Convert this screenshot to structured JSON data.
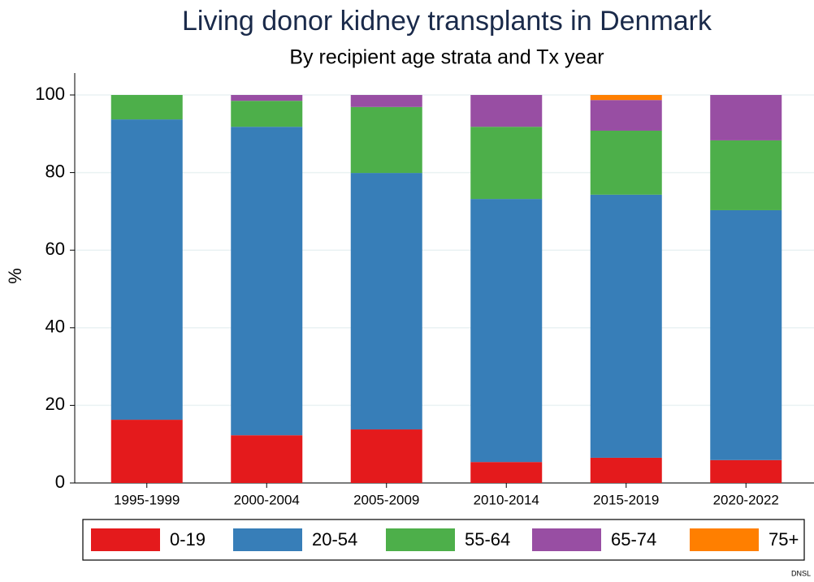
{
  "chart_data": {
    "type": "stacked_bar",
    "title": "Living donor kidney transplants in Denmark",
    "subtitle": "By recipient age strata and Tx year",
    "y_label": "%",
    "note": "DNSL",
    "categories": [
      "1995-1999",
      "2000-2004",
      "2005-2009",
      "2010-2014",
      "2015-2019",
      "2020-2022"
    ],
    "series": [
      {
        "name": "0-19",
        "color": "#e41a1c",
        "values": [
          16.3,
          12.3,
          13.8,
          5.4,
          6.5,
          5.9
        ]
      },
      {
        "name": "20-54",
        "color": "#377eb8",
        "values": [
          77.4,
          79.5,
          66.1,
          67.8,
          67.8,
          64.4
        ]
      },
      {
        "name": "55-64",
        "color": "#4daf4a",
        "values": [
          6.3,
          6.7,
          17.0,
          18.6,
          16.5,
          18.0
        ]
      },
      {
        "name": "65-74",
        "color": "#984ea3",
        "values": [
          0,
          1.5,
          3.1,
          8.2,
          7.9,
          11.7
        ]
      },
      {
        "name": "75+",
        "color": "#ff7f00",
        "values": [
          0,
          0,
          0,
          0,
          1.3,
          0
        ]
      }
    ],
    "ylim": [
      0,
      100
    ],
    "yticks": [
      0,
      20,
      40,
      60,
      80,
      100
    ],
    "grid": true,
    "legend": "bottom"
  }
}
